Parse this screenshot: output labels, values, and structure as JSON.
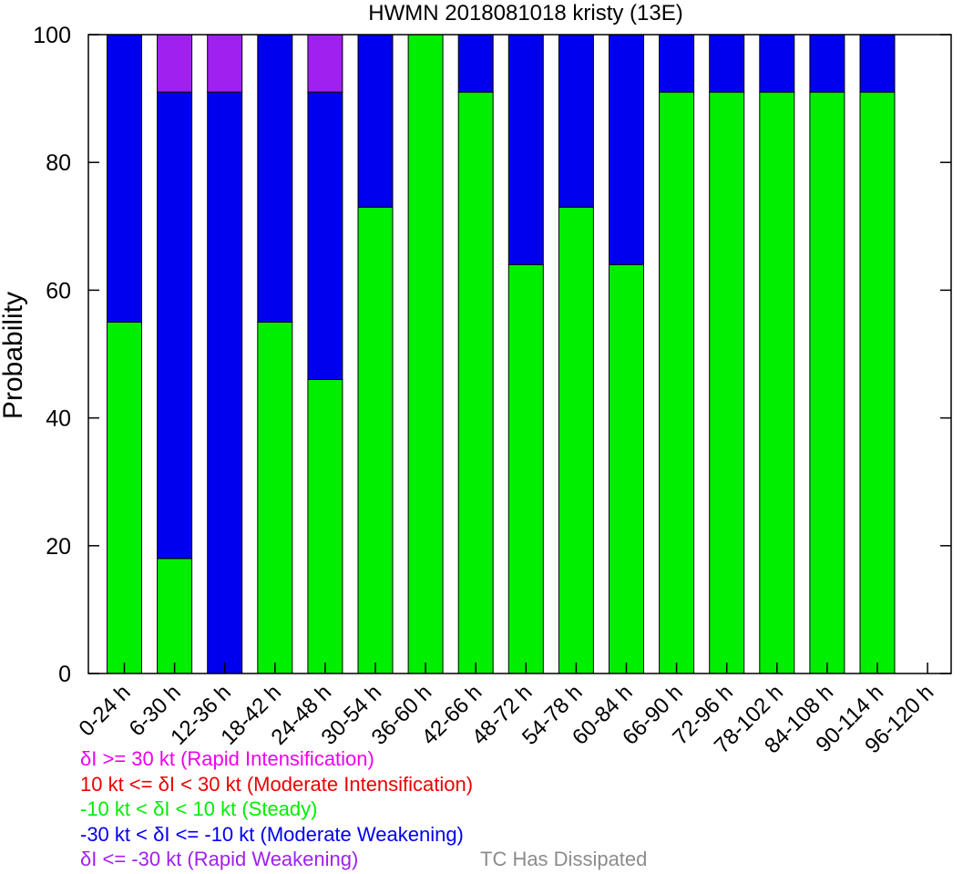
{
  "chart_data": {
    "type": "bar",
    "stacked": true,
    "title": "HWMN 2018081018 kristy (13E)",
    "xlabel": "",
    "ylabel": "Probability",
    "ylim": [
      0,
      100
    ],
    "yticks": [
      0,
      20,
      40,
      60,
      80,
      100
    ],
    "grid": false,
    "categories": [
      "0-24 h",
      "6-30 h",
      "12-36 h",
      "18-42 h",
      "24-48 h",
      "30-54 h",
      "36-60 h",
      "42-66 h",
      "48-72 h",
      "54-78 h",
      "60-84 h",
      "66-90 h",
      "72-96 h",
      "78-102 h",
      "84-108 h",
      "90-114 h",
      "96-120 h"
    ],
    "series": [
      {
        "key": "steady",
        "color": "#00ee00",
        "values": [
          55,
          18,
          0,
          55,
          46,
          73,
          100,
          91,
          64,
          73,
          64,
          91,
          91,
          91,
          91,
          91,
          0
        ]
      },
      {
        "key": "moderate_weakening",
        "color": "#0000ee",
        "values": [
          45,
          73,
          91,
          45,
          45,
          27,
          0,
          9,
          36,
          27,
          36,
          9,
          9,
          9,
          9,
          9,
          0
        ]
      },
      {
        "key": "rapid_weakening",
        "color": "#a020f0",
        "values": [
          0,
          9,
          9,
          0,
          9,
          0,
          0,
          0,
          0,
          0,
          0,
          0,
          0,
          0,
          0,
          0,
          0
        ]
      }
    ],
    "legend": [
      {
        "text": "δI >= 30 kt (Rapid Intensification)",
        "color": "#ee00ee"
      },
      {
        "text": "10 kt <= δI < 30 kt (Moderate Intensification)",
        "color": "#ee0000"
      },
      {
        "text": "-10 kt < δI < 10 kt (Steady)",
        "color": "#00ee00"
      },
      {
        "text": "-30 kt < δI <= -10 kt (Moderate Weakening)",
        "color": "#0000ee"
      },
      {
        "text": "δI <= -30 kt (Rapid Weakening)",
        "color": "#a020f0"
      }
    ],
    "dissipated_label": {
      "text": "TC Has Dissipated",
      "color": "#8c8c8c"
    }
  }
}
